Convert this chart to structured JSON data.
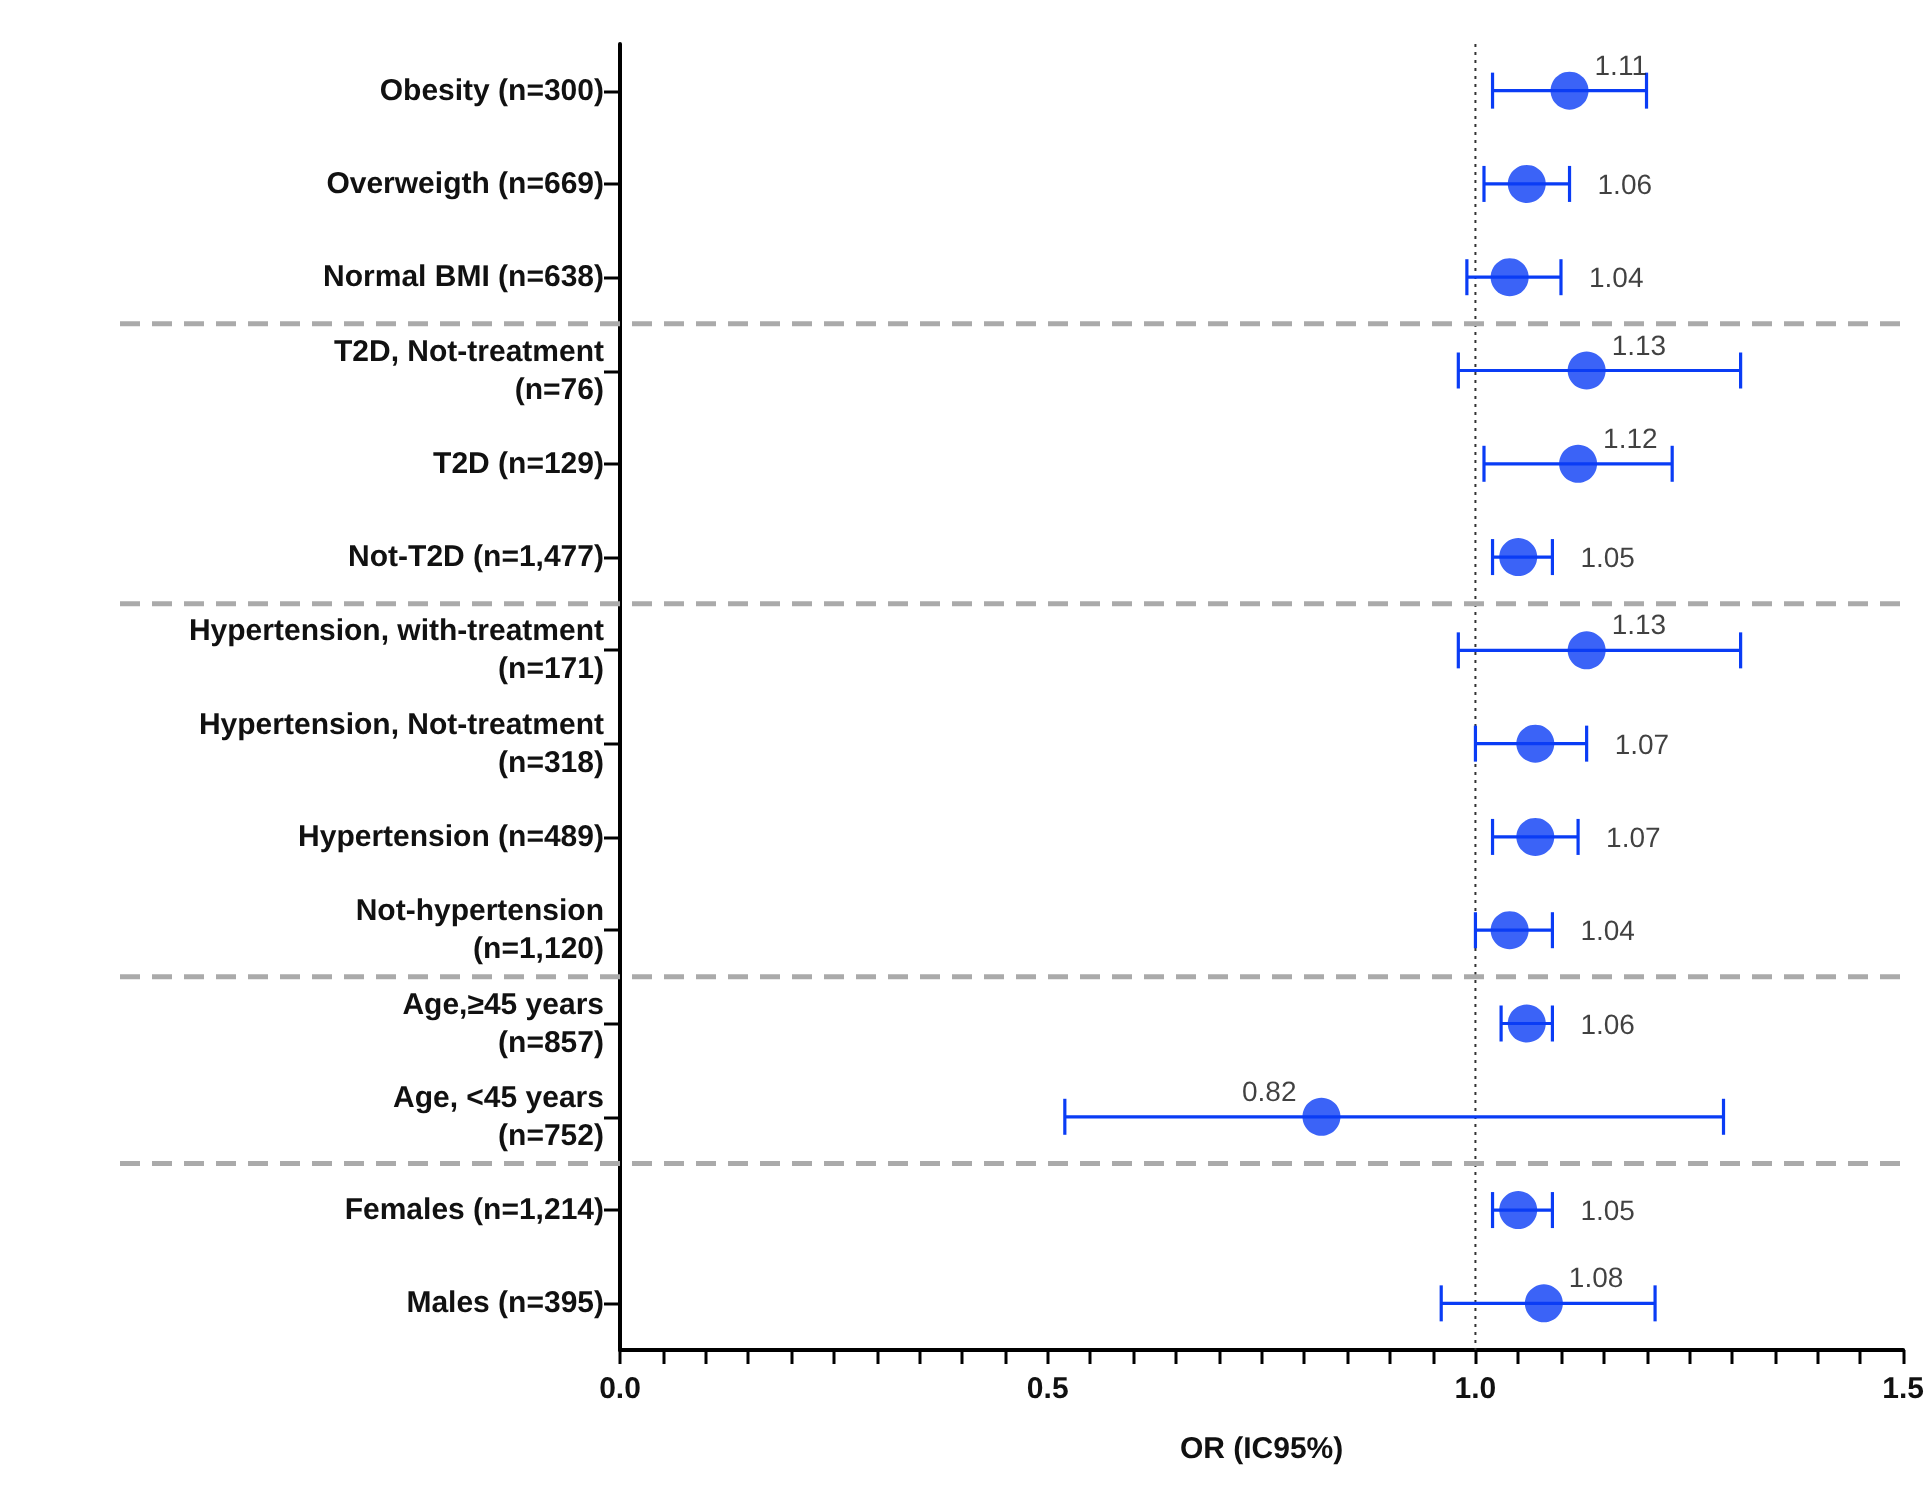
{
  "chart_data": {
    "type": "scatter",
    "orientation": "horizontal",
    "xlabel": "OR (IC95%)",
    "categories": [
      "Obesity (n=300)",
      "Overweigth (n=669)",
      "Normal BMI (n=638)",
      "T2D, Not-treatment\n(n=76)",
      "T2D (n=129)",
      "Not-T2D (n=1,477)",
      "Hypertension, with-treatment\n(n=171)",
      "Hypertension, Not-treatment\n(n=318)",
      "Hypertension (n=489)",
      "Not-hypertension\n(n=1,120)",
      "Age,≥45 years\n(n=857)",
      "Age, <45 years\n(n=752)",
      "Females (n=1,214)",
      "Males (n=395)"
    ],
    "series": [
      {
        "color": "#0a3cf5",
        "values": [
          1.11,
          1.06,
          1.04,
          1.13,
          1.12,
          1.05,
          1.13,
          1.07,
          1.07,
          1.04,
          1.06,
          0.82,
          1.05,
          1.08
        ],
        "errors": [
          [
            1.02,
            1.2
          ],
          [
            1.01,
            1.11
          ],
          [
            0.99,
            1.1
          ],
          [
            0.98,
            1.31
          ],
          [
            1.01,
            1.23
          ],
          [
            1.02,
            1.09
          ],
          [
            0.98,
            1.31
          ],
          [
            1.0,
            1.13
          ],
          [
            1.02,
            1.12
          ],
          [
            1.0,
            1.09
          ],
          [
            1.03,
            1.09
          ],
          [
            0.52,
            1.29
          ],
          [
            1.02,
            1.09
          ],
          [
            0.96,
            1.21
          ]
        ]
      }
    ],
    "data_labels": true,
    "marker": "circle",
    "xlim": [
      0,
      1.5
    ],
    "xticks": [
      {
        "value": 0,
        "label": "0.0"
      },
      {
        "value": 0.05,
        "label": null
      },
      {
        "value": 0.1,
        "label": null
      },
      {
        "value": 0.15,
        "label": null
      },
      {
        "value": 0.2,
        "label": null
      },
      {
        "value": 0.25,
        "label": null
      },
      {
        "value": 0.3,
        "label": null
      },
      {
        "value": 0.35,
        "label": null
      },
      {
        "value": 0.4,
        "label": null
      },
      {
        "value": 0.45,
        "label": null
      },
      {
        "value": 0.5,
        "label": "0.5"
      },
      {
        "value": 0.55,
        "label": null
      },
      {
        "value": 0.6,
        "label": null
      },
      {
        "value": 0.65,
        "label": null
      },
      {
        "value": 0.7,
        "label": null
      },
      {
        "value": 0.75,
        "label": null
      },
      {
        "value": 0.8,
        "label": null
      },
      {
        "value": 0.85,
        "label": null
      },
      {
        "value": 0.9,
        "label": null
      },
      {
        "value": 0.95,
        "label": null
      },
      {
        "value": 1,
        "label": "1.0"
      },
      {
        "value": 1.05,
        "label": null
      },
      {
        "value": 1.1,
        "label": null
      },
      {
        "value": 1.15,
        "label": null
      },
      {
        "value": 1.2,
        "label": null
      },
      {
        "value": 1.25,
        "label": null
      },
      {
        "value": 1.3,
        "label": null
      },
      {
        "value": 1.35,
        "label": null
      },
      {
        "value": 1.4,
        "label": null
      },
      {
        "value": 1.45,
        "label": null
      },
      {
        "value": 1.5,
        "label": "1.5"
      }
    ],
    "grid": false,
    "ref_lines": [
      {
        "axis": "x",
        "value": 1,
        "color": "#333333",
        "line_style": "dotted"
      }
    ]
  }
}
